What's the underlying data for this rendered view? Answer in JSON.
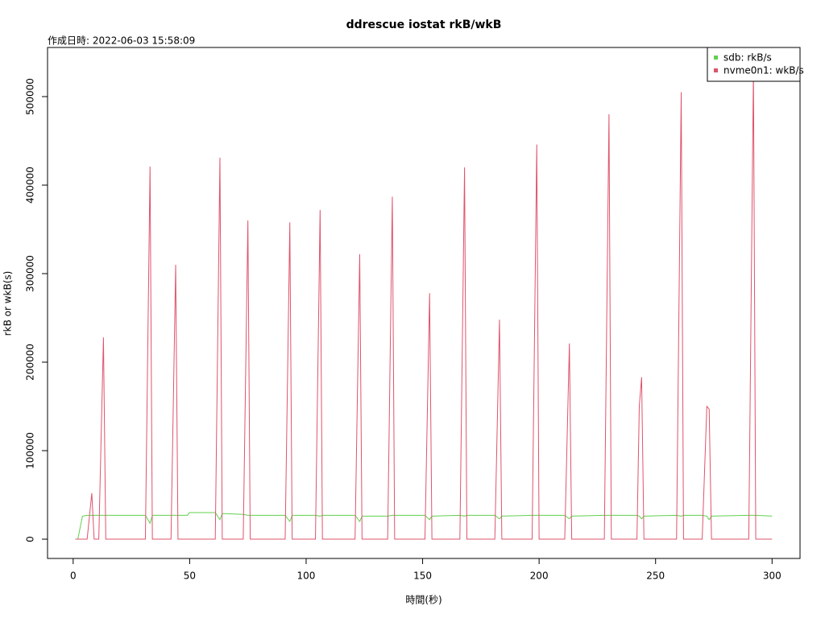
{
  "chart_data": {
    "type": "line",
    "title": "ddrescue iostat rkB/wkB",
    "subtitle": "作成日時: 2022-06-03 15:58:09",
    "xlabel": "時間(秒)",
    "ylabel": "rkB or wkB(s)",
    "x": [
      1,
      2,
      4,
      6,
      8,
      9,
      11,
      13,
      14,
      31,
      33,
      34,
      42,
      44,
      45,
      49,
      50,
      61,
      63,
      64,
      73,
      75,
      76,
      91,
      93,
      94,
      104,
      106,
      107,
      121,
      123,
      124,
      135,
      137,
      138,
      151,
      153,
      154,
      166,
      168,
      169,
      181,
      183,
      184,
      197,
      199,
      200,
      211,
      213,
      214,
      228,
      230,
      231,
      242,
      243,
      244,
      245,
      259,
      261,
      262,
      270,
      272,
      273,
      274,
      290,
      292,
      293,
      300
    ],
    "series": [
      {
        "name": "sdb: rkB/s",
        "color": "#61D04F",
        "values": [
          0,
          0,
          26000,
          27000,
          27000,
          27000,
          27000,
          27000,
          27000,
          27000,
          18000,
          27000,
          27000,
          27000,
          27000,
          27000,
          30000,
          30000,
          22000,
          29000,
          28000,
          27000,
          27000,
          27000,
          20000,
          27000,
          27000,
          26000,
          27000,
          27000,
          20000,
          26000,
          26000,
          27000,
          27000,
          27000,
          22000,
          26000,
          27000,
          26000,
          27000,
          27000,
          23000,
          26000,
          27000,
          27000,
          27000,
          27000,
          23000,
          26000,
          27000,
          27000,
          27000,
          27000,
          26000,
          23000,
          26000,
          27000,
          26000,
          27000,
          27000,
          26000,
          22000,
          26000,
          27000,
          27000,
          27000,
          26000
        ]
      },
      {
        "name": "nvme0n1: wkB/s",
        "color": "#DF536B",
        "values": [
          0,
          0,
          0,
          0,
          52000,
          0,
          0,
          228000,
          0,
          0,
          421000,
          0,
          0,
          310000,
          0,
          0,
          0,
          0,
          431000,
          0,
          0,
          360000,
          0,
          0,
          358000,
          0,
          0,
          372000,
          0,
          0,
          322000,
          0,
          0,
          387000,
          0,
          0,
          278000,
          0,
          0,
          420000,
          0,
          0,
          248000,
          0,
          0,
          446000,
          0,
          0,
          221000,
          0,
          0,
          480000,
          0,
          0,
          150000,
          183000,
          0,
          0,
          505000,
          0,
          0,
          150000,
          147000,
          0,
          0,
          530000,
          0,
          0
        ]
      }
    ],
    "xlim": [
      -11,
      312
    ],
    "ylim": [
      -21800,
      555500
    ],
    "xticks": [
      0,
      50,
      100,
      150,
      200,
      250,
      300
    ],
    "yticks": [
      0,
      100000,
      200000,
      300000,
      400000,
      500000
    ],
    "legend": "topright"
  }
}
